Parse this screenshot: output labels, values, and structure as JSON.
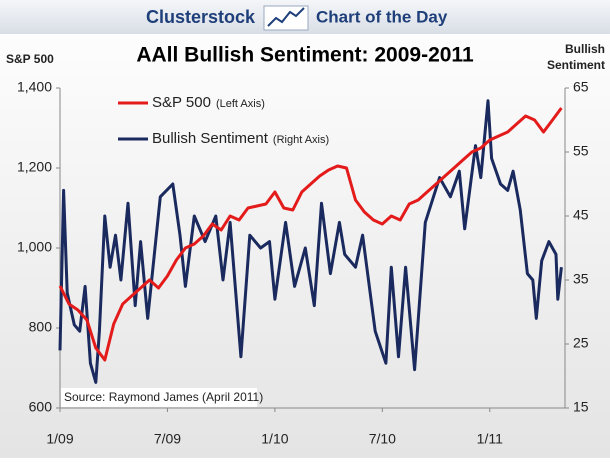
{
  "header": {
    "brand": "Clusterstock",
    "tagline": "Chart of the Day"
  },
  "chart_data": {
    "type": "line",
    "title": "AAll Bullish Sentiment: 2009-2011",
    "y_label": "S&P 500",
    "y2_label": [
      "Bullish",
      "Sentiment"
    ],
    "annotation": "Source: Raymond James (April 2011)",
    "xlim": [
      0,
      28.2
    ],
    "xticks": [
      {
        "value": 0,
        "label": "1/09"
      },
      {
        "value": 6,
        "label": "7/09"
      },
      {
        "value": 12,
        "label": "1/10"
      },
      {
        "value": 18,
        "label": "7/10"
      },
      {
        "value": 24,
        "label": "1/11"
      }
    ],
    "ylim": [
      600,
      1400
    ],
    "yticks": [
      {
        "value": 600,
        "label": "600"
      },
      {
        "value": 800,
        "label": "800"
      },
      {
        "value": 1000,
        "label": "1,000"
      },
      {
        "value": 1200,
        "label": "1,200"
      },
      {
        "value": 1400,
        "label": "1,400"
      }
    ],
    "y2lim": [
      15,
      65
    ],
    "y2ticks": [
      15,
      25,
      35,
      45,
      55,
      65
    ],
    "legend": "top-left",
    "series": [
      {
        "name": "S&P 500",
        "note": "(Left Axis)",
        "color": "#e31b1b",
        "axis": "y",
        "x": [
          0,
          0.5,
          1,
          1.5,
          2,
          2.5,
          3,
          3.5,
          4,
          4.5,
          5,
          5.5,
          6,
          6.5,
          7,
          7.5,
          8,
          8.5,
          9,
          9.5,
          10,
          10.5,
          11,
          11.5,
          12,
          12.5,
          13,
          13.5,
          14,
          14.5,
          15,
          15.5,
          16,
          16.5,
          17,
          17.5,
          18,
          18.5,
          19,
          19.5,
          20,
          20.5,
          21,
          21.5,
          22,
          22.5,
          23,
          23.5,
          24,
          24.5,
          25,
          25.5,
          26,
          26.5,
          27,
          27.5,
          28
        ],
        "values": [
          905,
          860,
          845,
          820,
          750,
          720,
          810,
          860,
          880,
          900,
          920,
          900,
          930,
          970,
          1000,
          1010,
          1030,
          1060,
          1045,
          1080,
          1070,
          1100,
          1105,
          1110,
          1140,
          1100,
          1095,
          1140,
          1160,
          1180,
          1195,
          1205,
          1200,
          1120,
          1090,
          1070,
          1060,
          1080,
          1070,
          1110,
          1120,
          1140,
          1160,
          1180,
          1200,
          1220,
          1240,
          1250,
          1270,
          1280,
          1290,
          1310,
          1330,
          1320,
          1290,
          1320,
          1350
        ]
      },
      {
        "name": "Bullish Sentiment",
        "note": "(Right Axis)",
        "color": "#1a2a5e",
        "axis": "y2",
        "x": [
          0,
          0.2,
          0.4,
          0.8,
          1.1,
          1.4,
          1.7,
          2.0,
          2.2,
          2.5,
          2.8,
          3.1,
          3.4,
          3.8,
          4.2,
          4.5,
          4.9,
          5.6,
          6.3,
          6.7,
          7.0,
          7.5,
          8.1,
          8.7,
          9.1,
          9.5,
          10.1,
          10.6,
          11.2,
          11.7,
          12.0,
          12.6,
          13.1,
          13.7,
          14.2,
          14.6,
          15.1,
          15.6,
          15.9,
          16.5,
          16.9,
          17.6,
          18.2,
          18.5,
          18.9,
          19.3,
          19.8,
          20.4,
          21.2,
          21.8,
          22.3,
          22.6,
          23.2,
          23.5,
          23.9,
          24.1,
          24.6,
          25.0,
          25.3,
          25.7,
          26.1,
          26.4,
          26.6,
          26.9,
          27.3,
          27.7,
          27.8,
          28.0
        ],
        "values": [
          24,
          49,
          33,
          28,
          27,
          34,
          22,
          19,
          27,
          45,
          37,
          42,
          35,
          47,
          31,
          41,
          29,
          48,
          50,
          42,
          34,
          45,
          41,
          45,
          35,
          44,
          23,
          42,
          40,
          41,
          32,
          44,
          34,
          40,
          31,
          47,
          36,
          44,
          39,
          37,
          42,
          27,
          22,
          37,
          23,
          37,
          21,
          44,
          51,
          48,
          52,
          43,
          56,
          51,
          63,
          54,
          50,
          49,
          52,
          46,
          36,
          35,
          29,
          38,
          41,
          39,
          32,
          37
        ]
      }
    ]
  }
}
